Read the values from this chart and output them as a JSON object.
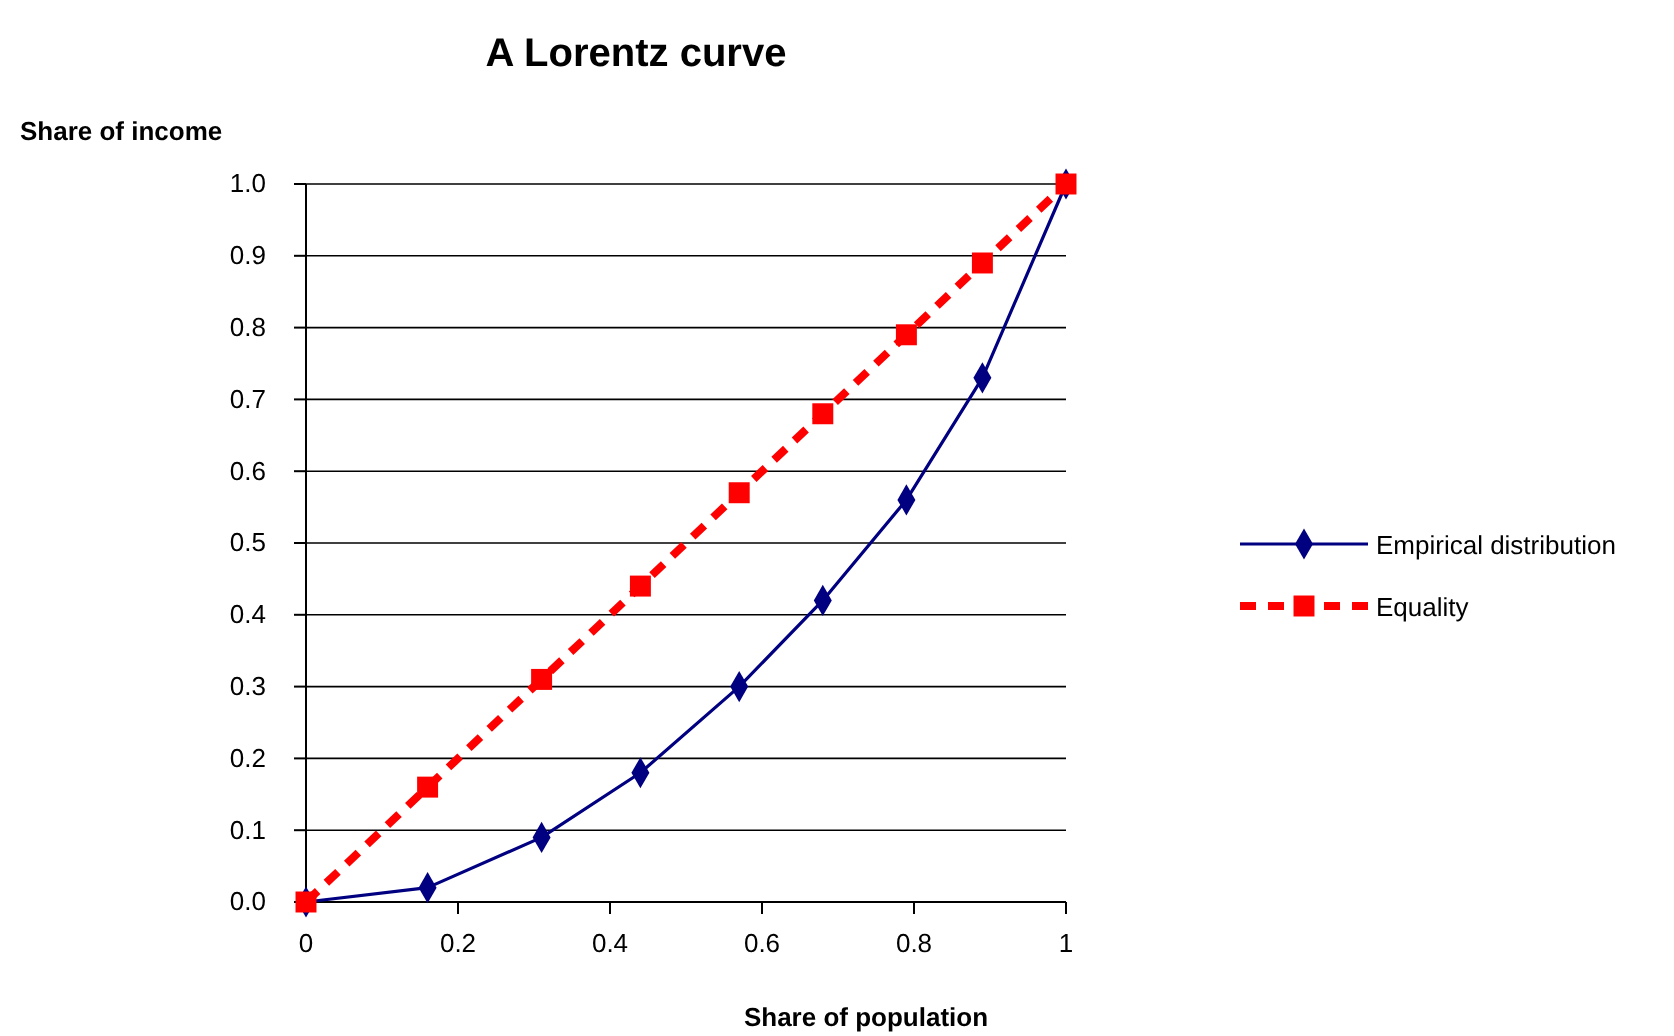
{
  "chart_data": {
    "type": "line",
    "title": "A Lorentz curve",
    "xlabel": "Share of  population",
    "ylabel": "Share of income",
    "x": [
      0,
      0.16,
      0.31,
      0.44,
      0.57,
      0.68,
      0.79,
      0.89,
      1
    ],
    "series": [
      {
        "name": "Empirical distribution",
        "color": "#000080",
        "values": [
          0,
          0.02,
          0.09,
          0.18,
          0.3,
          0.42,
          0.56,
          0.73,
          1
        ],
        "marker": "diamond",
        "line_style": "solid"
      },
      {
        "name": "Equality",
        "color": "#ff0000",
        "values": [
          0,
          0.16,
          0.31,
          0.44,
          0.57,
          0.68,
          0.79,
          0.89,
          1
        ],
        "marker": "square",
        "line_style": "dashed"
      }
    ],
    "xlim": [
      0,
      1
    ],
    "xticks": [
      0,
      {
        "value": 0.2,
        "label": "0.2"
      },
      {
        "value": 0.4,
        "label": "0.4"
      },
      {
        "value": 0.6,
        "label": "0.6"
      },
      {
        "value": 0.8,
        "label": "0.8"
      },
      1
    ],
    "ylim": [
      0,
      1
    ],
    "yticks": [
      {
        "value": 0,
        "label": "0.0"
      },
      0.1,
      0.2,
      0.3,
      0.4,
      0.5,
      0.6,
      0.7,
      0.8,
      0.9,
      {
        "value": 1,
        "label": "1.0"
      }
    ],
    "grid": "y",
    "legend": "right"
  }
}
